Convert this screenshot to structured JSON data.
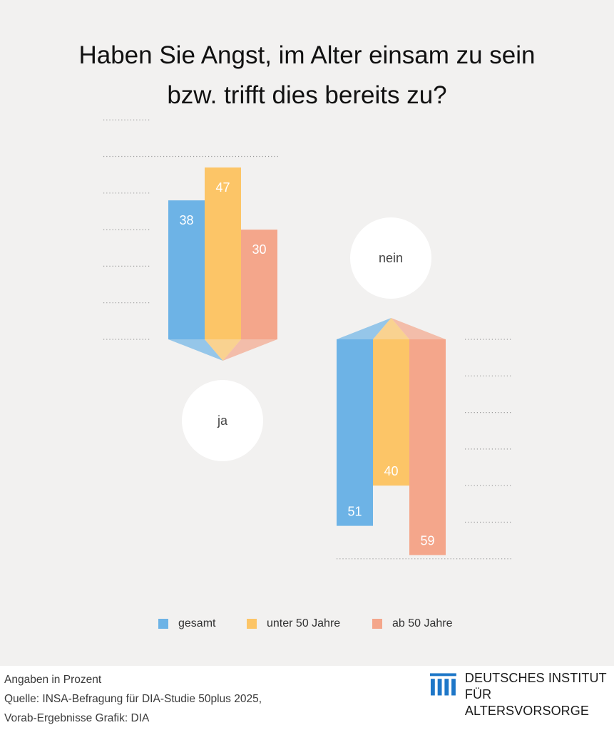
{
  "title": {
    "line1": "Haben Sie Angst, im Alter einsam zu sein",
    "line2": "bzw. trifft dies bereits zu?"
  },
  "colors": {
    "gesamt": "#6db3e6",
    "unter50": "#fcc567",
    "ab50": "#f4a68b",
    "background": "#f2f1f0",
    "logo": "#1e77c8"
  },
  "chart_data": {
    "type": "bar",
    "title": "Haben Sie Angst, im Alter einsam zu sein bzw. trifft dies bereits zu?",
    "unit_note": "Angaben in Prozent",
    "groups": [
      {
        "label": "ja",
        "direction": "up",
        "values": [
          38,
          47,
          30
        ]
      },
      {
        "label": "nein",
        "direction": "down",
        "values": [
          51,
          40,
          59
        ]
      }
    ],
    "series": [
      {
        "name": "gesamt",
        "color": "#6db3e6"
      },
      {
        "name": "unter 50 Jahre",
        "color": "#fcc567"
      },
      {
        "name": "ab 50 Jahre",
        "color": "#f4a68b"
      }
    ],
    "ylim": [
      0,
      60
    ],
    "grid": "dotted"
  },
  "footer": {
    "line1": "Angaben in Prozent",
    "line2": "Quelle: INSA-Befragung für DIA-Studie 50plus 2025,",
    "line3": "Vorab-Ergebnisse  Grafik: DIA"
  },
  "logo": {
    "icon": "dia-columns-logo",
    "line1": "DEUTSCHES INSTITUT",
    "line2": "FÜR ALTERSVORSORGE"
  }
}
